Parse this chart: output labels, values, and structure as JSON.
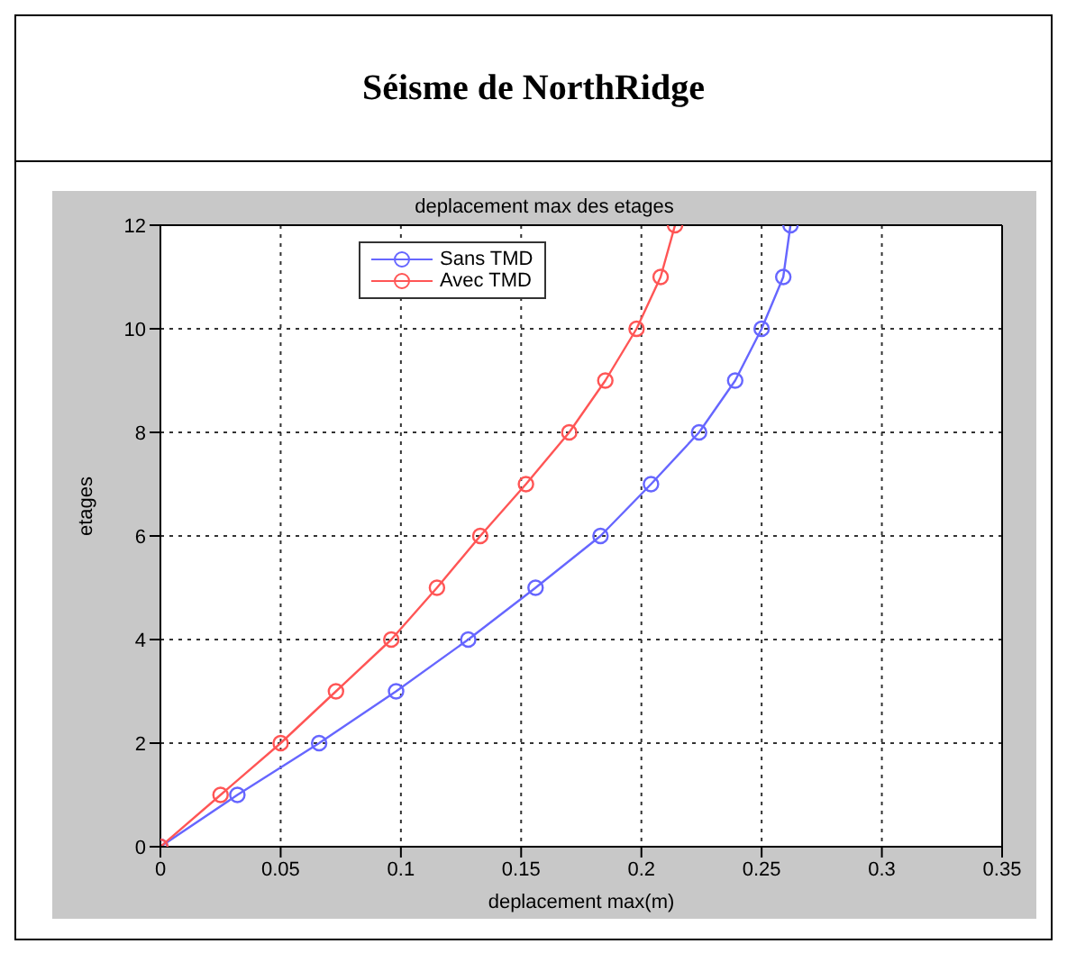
{
  "chart_data": {
    "type": "line",
    "title": "Séisme de NorthRidge",
    "subtitle": "deplacement max des etages",
    "xlabel": "deplacement max(m)",
    "ylabel": "etages",
    "xlim": [
      0,
      0.35
    ],
    "xticks": [
      0,
      0.05,
      0.1,
      0.15,
      0.2,
      0.25,
      0.3,
      0.35
    ],
    "ylim": [
      0,
      12
    ],
    "yticks": [
      0,
      2,
      4,
      6,
      8,
      10,
      12
    ],
    "grid": true,
    "legend": "top left",
    "marker": "circle",
    "line_style": "solid",
    "series": [
      {
        "name": "Sans TMD",
        "color": "#6666ff",
        "x": [
          0,
          0.032,
          0.066,
          0.098,
          0.128,
          0.156,
          0.183,
          0.204,
          0.224,
          0.239,
          0.25,
          0.259,
          0.262
        ],
        "values": [
          0,
          1,
          2,
          3,
          4,
          5,
          6,
          7,
          8,
          9,
          10,
          11,
          12
        ]
      },
      {
        "name": "Avec TMD",
        "color": "#ff5555",
        "x": [
          0,
          0.025,
          0.05,
          0.073,
          0.096,
          0.115,
          0.133,
          0.152,
          0.17,
          0.185,
          0.198,
          0.208,
          0.214
        ],
        "values": [
          0,
          1,
          2,
          3,
          4,
          5,
          6,
          7,
          8,
          9,
          10,
          11,
          12
        ]
      }
    ]
  }
}
